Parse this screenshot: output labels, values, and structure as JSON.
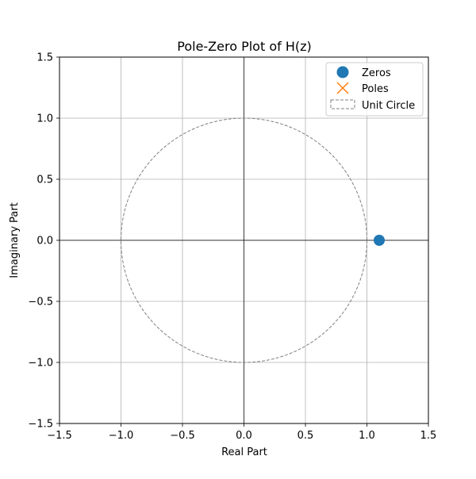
{
  "chart_data": {
    "type": "scatter",
    "title": "Pole-Zero Plot of H(z)",
    "xlabel": "Real Part",
    "ylabel": "Imaginary Part",
    "xlim": [
      -1.5,
      1.5
    ],
    "ylim": [
      -1.5,
      1.5
    ],
    "xticks": [
      -1.5,
      -1.0,
      -0.5,
      0.0,
      0.5,
      1.0,
      1.5
    ],
    "yticks": [
      -1.5,
      -1.0,
      -0.5,
      0.0,
      0.5,
      1.0,
      1.5
    ],
    "xtick_labels": [
      "−1.5",
      "−1.0",
      "−0.5",
      "0.0",
      "0.5",
      "1.0",
      "1.5"
    ],
    "ytick_labels": [
      "−1.5",
      "−1.0",
      "−0.5",
      "0.0",
      "0.5",
      "1.0",
      "1.5"
    ],
    "grid": true,
    "legend_placement": "top-right",
    "series": [
      {
        "name": "Zeros",
        "marker": "circle",
        "color": "#1f77b4",
        "points": [
          {
            "x": 1.1,
            "y": 0.0
          }
        ]
      },
      {
        "name": "Poles",
        "marker": "x",
        "color": "#ff7f0e",
        "points": []
      },
      {
        "name": "Unit Circle",
        "marker": "dashed-line",
        "color": "#808080",
        "circle": {
          "cx": 0.0,
          "cy": 0.0,
          "r": 1.0
        }
      }
    ]
  }
}
